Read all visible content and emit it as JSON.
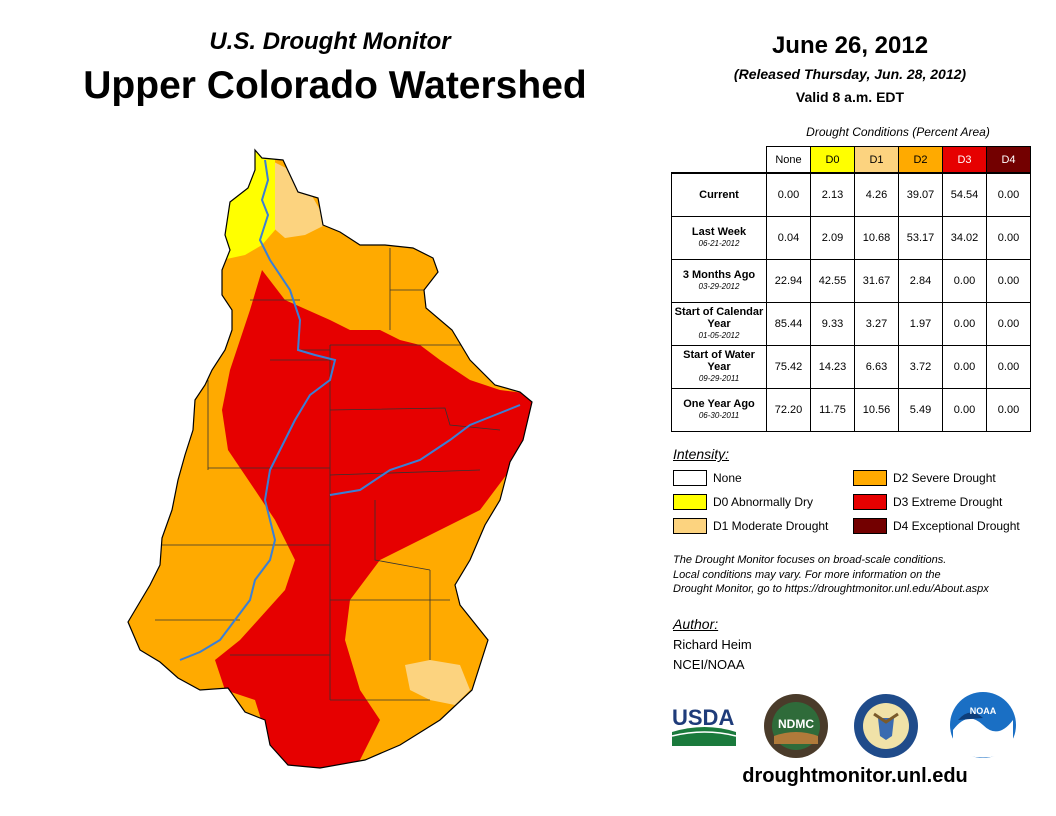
{
  "header": {
    "subtitle": "U.S. Drought Monitor",
    "title": "Upper Colorado Watershed",
    "date": "June 26, 2012",
    "released": "(Released Thursday, Jun. 28, 2012)",
    "valid": "Valid 8 a.m. EDT"
  },
  "table": {
    "caption": "Drought Conditions (Percent Area)",
    "columns": [
      "None",
      "D0",
      "D1",
      "D2",
      "D3",
      "D4"
    ],
    "column_colors": [
      "#ffffff",
      "#ffff00",
      "#fcd37f",
      "#ffaa00",
      "#e60000",
      "#730000"
    ],
    "rows": [
      {
        "label": "Current",
        "sub": "",
        "values": [
          "0.00",
          "2.13",
          "4.26",
          "39.07",
          "54.54",
          "0.00"
        ]
      },
      {
        "label": "Last Week",
        "sub": "06-21-2012",
        "values": [
          "0.04",
          "2.09",
          "10.68",
          "53.17",
          "34.02",
          "0.00"
        ]
      },
      {
        "label": "3 Months Ago",
        "sub": "03-29-2012",
        "values": [
          "22.94",
          "42.55",
          "31.67",
          "2.84",
          "0.00",
          "0.00"
        ]
      },
      {
        "label": "Start of Calendar Year",
        "sub": "01-05-2012",
        "values": [
          "85.44",
          "9.33",
          "3.27",
          "1.97",
          "0.00",
          "0.00"
        ]
      },
      {
        "label": "Start of Water Year",
        "sub": "09-29-2011",
        "values": [
          "75.42",
          "14.23",
          "6.63",
          "3.72",
          "0.00",
          "0.00"
        ]
      },
      {
        "label": "One Year Ago",
        "sub": "06-30-2011",
        "values": [
          "72.20",
          "11.75",
          "10.56",
          "5.49",
          "0.00",
          "0.00"
        ]
      }
    ]
  },
  "legend": {
    "heading": "Intensity:",
    "items": [
      {
        "label": "None",
        "color": "#ffffff"
      },
      {
        "label": "D0 Abnormally Dry",
        "color": "#ffff00"
      },
      {
        "label": "D1 Moderate Drought",
        "color": "#fcd37f"
      },
      {
        "label": "D2 Severe Drought",
        "color": "#ffaa00"
      },
      {
        "label": "D3 Extreme Drought",
        "color": "#e60000"
      },
      {
        "label": "D4 Exceptional Drought",
        "color": "#730000"
      }
    ]
  },
  "note": {
    "line1": "The Drought Monitor focuses on broad-scale conditions.",
    "line2": "Local conditions may vary. For more information on the",
    "line3": "Drought Monitor, go to https://droughtmonitor.unl.edu/About.aspx"
  },
  "author": {
    "heading": "Author:",
    "name": "Richard Heim",
    "org": "NCEI/NOAA"
  },
  "logos": {
    "usda": "USDA",
    "ndmc": "NDMC",
    "noaa": "NOAA"
  },
  "website": "droughtmonitor.unl.edu",
  "colors": {
    "river": "#3a7fd5",
    "d2": "#ffaa00",
    "d3": "#e60000",
    "d1": "#fcd37f",
    "d0": "#ffff00"
  }
}
